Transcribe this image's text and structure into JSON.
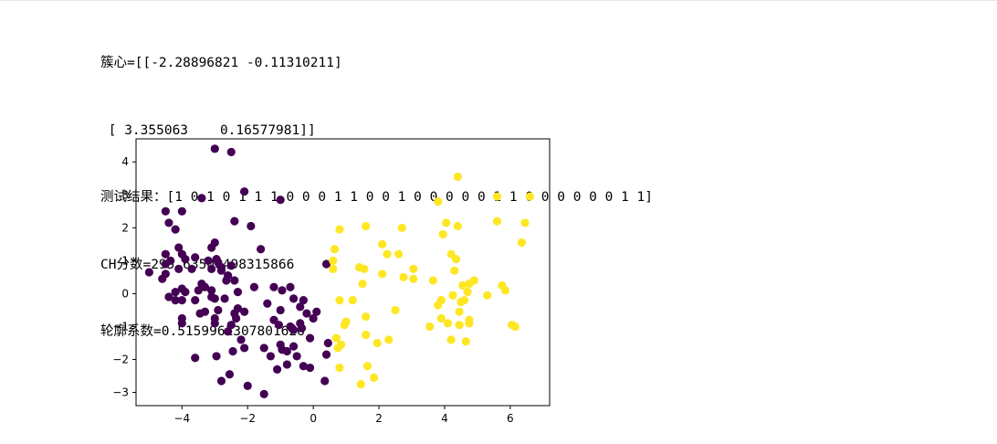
{
  "output": {
    "centers_line1": "簇心=[[-2.28896821 -0.11310211]",
    "centers_line2": " [ 3.355063    0.16577981]]",
    "test_result": "测试结果：[1 0 1 0 1 1 1 0 0 0 1 1 0 0 1 0 0 0 0 0 1 1 0 0 0 0 0 0 1 1]",
    "ch_score": "CH分数=295.63506498315866",
    "silhouette": "轮廓系数=0.5159961307801626"
  },
  "colors": {
    "cluster0": "#440154",
    "cluster1": "#fde725",
    "axes": "#000000"
  },
  "chart_data": {
    "type": "scatter",
    "title": "",
    "xlabel": "",
    "ylabel": "",
    "xlim": [
      -5.4,
      7.2
    ],
    "ylim": [
      -3.4,
      4.7
    ],
    "xticks": [
      -4,
      -2,
      0,
      2,
      4,
      6
    ],
    "yticks": [
      -3,
      -2,
      -1,
      0,
      1,
      2,
      3,
      4
    ],
    "series": [
      {
        "color": "#440154",
        "points": [
          [
            -3.0,
            4.4
          ],
          [
            -2.5,
            4.3
          ],
          [
            -2.1,
            3.1
          ],
          [
            -3.4,
            2.9
          ],
          [
            -1.0,
            2.85
          ],
          [
            -4.5,
            2.5
          ],
          [
            -4.0,
            2.5
          ],
          [
            -4.4,
            2.15
          ],
          [
            -4.2,
            1.95
          ],
          [
            -2.4,
            2.2
          ],
          [
            -1.9,
            2.05
          ],
          [
            -3.0,
            1.55
          ],
          [
            -3.1,
            1.4
          ],
          [
            -4.1,
            1.4
          ],
          [
            -1.6,
            1.35
          ],
          [
            -4.5,
            1.2
          ],
          [
            -4.0,
            1.2
          ],
          [
            -3.6,
            1.1
          ],
          [
            -2.95,
            1.05
          ],
          [
            -4.35,
            1.0
          ],
          [
            -4.5,
            0.9
          ],
          [
            -3.9,
            1.05
          ],
          [
            -3.2,
            1.0
          ],
          [
            -2.9,
            0.95
          ],
          [
            -2.5,
            0.85
          ],
          [
            -2.8,
            0.8
          ],
          [
            -3.7,
            0.75
          ],
          [
            -4.1,
            0.75
          ],
          [
            -3.1,
            0.75
          ],
          [
            -2.8,
            0.7
          ],
          [
            -5.0,
            0.65
          ],
          [
            -4.5,
            0.6
          ],
          [
            -2.6,
            0.55
          ],
          [
            -4.6,
            0.45
          ],
          [
            -2.4,
            0.4
          ],
          [
            -3.4,
            0.3
          ],
          [
            -2.65,
            0.4
          ],
          [
            -3.3,
            0.2
          ],
          [
            -4.0,
            0.15
          ],
          [
            -3.5,
            0.1
          ],
          [
            -3.1,
            0.1
          ],
          [
            -4.2,
            0.05
          ],
          [
            -3.9,
            0.05
          ],
          [
            -2.3,
            0.05
          ],
          [
            -1.8,
            0.2
          ],
          [
            -1.2,
            0.2
          ],
          [
            -0.7,
            0.2
          ],
          [
            -4.4,
            -0.1
          ],
          [
            -3.1,
            -0.1
          ],
          [
            -3.0,
            -0.15
          ],
          [
            -2.7,
            -0.15
          ],
          [
            -4.2,
            -0.2
          ],
          [
            -4.0,
            -0.2
          ],
          [
            -3.6,
            -0.2
          ],
          [
            -1.4,
            -0.3
          ],
          [
            -0.95,
            0.1
          ],
          [
            -0.6,
            -0.15
          ],
          [
            -0.3,
            -0.2
          ],
          [
            -0.4,
            -0.4
          ],
          [
            -2.3,
            -0.45
          ],
          [
            -3.3,
            -0.55
          ],
          [
            -2.9,
            -0.5
          ],
          [
            -3.45,
            -0.6
          ],
          [
            -1.0,
            -0.5
          ],
          [
            -2.1,
            -0.55
          ],
          [
            -4.0,
            -0.75
          ],
          [
            -3.0,
            -0.75
          ],
          [
            -2.35,
            -0.75
          ],
          [
            -2.4,
            -0.6
          ],
          [
            -1.2,
            -0.8
          ],
          [
            -4.0,
            -0.9
          ],
          [
            -3.0,
            -0.9
          ],
          [
            -2.5,
            -0.95
          ],
          [
            -1.05,
            -0.95
          ],
          [
            -0.7,
            -1.0
          ],
          [
            -0.65,
            -1.05
          ],
          [
            -0.4,
            -0.9
          ],
          [
            -0.2,
            -0.6
          ],
          [
            0.1,
            -0.55
          ],
          [
            -0.6,
            -1.1
          ],
          [
            -0.35,
            -1.05
          ],
          [
            0.0,
            -0.75
          ],
          [
            -2.6,
            -1.15
          ],
          [
            -2.2,
            -1.4
          ],
          [
            -0.1,
            -1.35
          ],
          [
            0.45,
            -1.5
          ],
          [
            -1.0,
            -1.55
          ],
          [
            -0.6,
            -1.6
          ],
          [
            -1.5,
            -1.65
          ],
          [
            -0.95,
            -1.7
          ],
          [
            -2.45,
            -1.75
          ],
          [
            -2.1,
            -1.65
          ],
          [
            -0.8,
            -1.75
          ],
          [
            -3.6,
            -1.95
          ],
          [
            -2.95,
            -1.9
          ],
          [
            -1.3,
            -1.9
          ],
          [
            -0.5,
            -1.9
          ],
          [
            0.4,
            -1.85
          ],
          [
            -0.3,
            -2.2
          ],
          [
            -0.8,
            -2.15
          ],
          [
            -0.1,
            -2.25
          ],
          [
            -1.1,
            -2.3
          ],
          [
            -2.55,
            -2.45
          ],
          [
            -2.8,
            -2.65
          ],
          [
            0.35,
            -2.65
          ],
          [
            -2.0,
            -2.8
          ],
          [
            -1.5,
            -3.05
          ],
          [
            0.4,
            0.9
          ]
        ]
      },
      {
        "color": "#fde725",
        "points": [
          [
            4.4,
            3.55
          ],
          [
            5.6,
            2.95
          ],
          [
            6.6,
            2.95
          ],
          [
            3.8,
            2.8
          ],
          [
            4.05,
            2.15
          ],
          [
            4.4,
            2.05
          ],
          [
            5.6,
            2.2
          ],
          [
            6.45,
            2.15
          ],
          [
            2.7,
            2.0
          ],
          [
            1.6,
            2.05
          ],
          [
            0.8,
            1.95
          ],
          [
            3.95,
            1.8
          ],
          [
            6.35,
            1.55
          ],
          [
            2.1,
            1.5
          ],
          [
            0.65,
            1.35
          ],
          [
            2.25,
            1.2
          ],
          [
            4.2,
            1.2
          ],
          [
            2.6,
            1.2
          ],
          [
            0.6,
            1.0
          ],
          [
            4.35,
            1.05
          ],
          [
            0.6,
            0.75
          ],
          [
            1.4,
            0.8
          ],
          [
            1.55,
            0.75
          ],
          [
            3.05,
            0.75
          ],
          [
            4.3,
            0.7
          ],
          [
            2.1,
            0.6
          ],
          [
            2.75,
            0.5
          ],
          [
            3.05,
            0.45
          ],
          [
            3.65,
            0.4
          ],
          [
            1.5,
            0.3
          ],
          [
            4.55,
            0.25
          ],
          [
            5.75,
            0.25
          ],
          [
            4.9,
            0.4
          ],
          [
            4.75,
            0.3
          ],
          [
            5.85,
            0.1
          ],
          [
            4.7,
            0.05
          ],
          [
            4.25,
            -0.05
          ],
          [
            5.3,
            -0.05
          ],
          [
            0.8,
            -0.2
          ],
          [
            1.2,
            -0.2
          ],
          [
            3.9,
            -0.2
          ],
          [
            4.5,
            -0.25
          ],
          [
            4.6,
            -0.2
          ],
          [
            3.8,
            -0.35
          ],
          [
            2.5,
            -0.5
          ],
          [
            4.45,
            -0.55
          ],
          [
            1.6,
            -0.7
          ],
          [
            3.9,
            -0.75
          ],
          [
            4.75,
            -0.8
          ],
          [
            1.0,
            -0.85
          ],
          [
            0.95,
            -0.95
          ],
          [
            4.1,
            -0.9
          ],
          [
            4.45,
            -0.95
          ],
          [
            3.55,
            -1.0
          ],
          [
            4.75,
            -0.9
          ],
          [
            6.05,
            -0.95
          ],
          [
            6.15,
            -1.0
          ],
          [
            1.6,
            -1.25
          ],
          [
            0.7,
            -1.35
          ],
          [
            4.2,
            -1.4
          ],
          [
            4.65,
            -1.45
          ],
          [
            2.3,
            -1.4
          ],
          [
            1.95,
            -1.5
          ],
          [
            0.85,
            -1.55
          ],
          [
            0.75,
            -1.65
          ],
          [
            0.8,
            -2.25
          ],
          [
            1.65,
            -2.2
          ],
          [
            1.85,
            -2.55
          ],
          [
            1.45,
            -2.75
          ]
        ]
      }
    ]
  }
}
